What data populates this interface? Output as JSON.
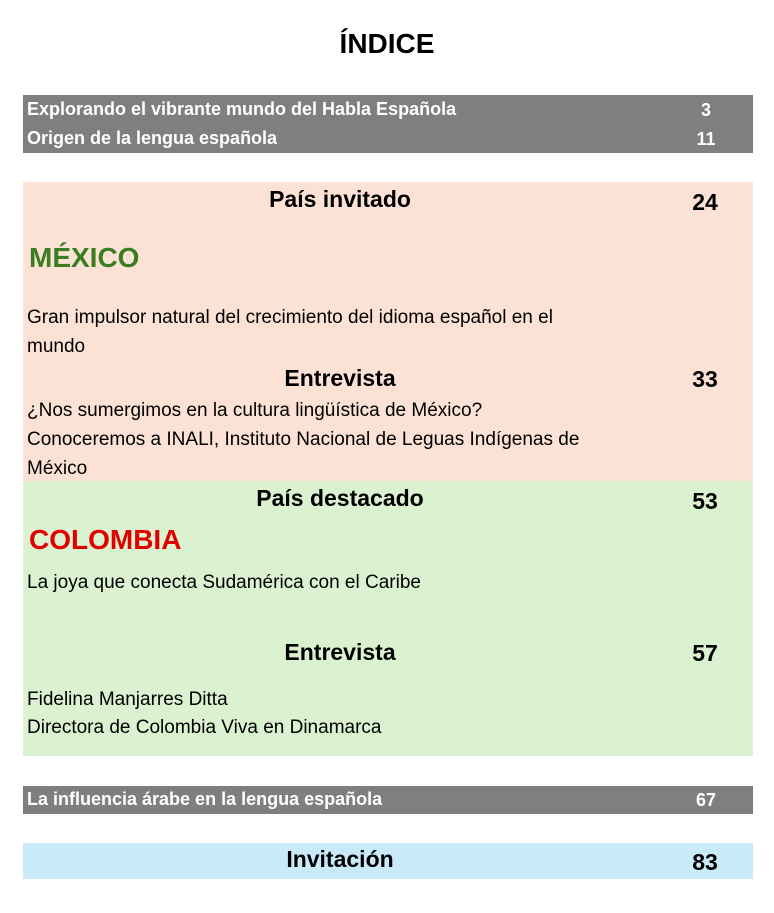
{
  "title": "ÍNDICE",
  "top_entries": [
    {
      "label": "Explorando el vibrante mundo del Habla Española",
      "page": "3"
    },
    {
      "label": "Origen de la lengua española",
      "page": "11"
    }
  ],
  "mexico_section": {
    "heading": "País invitado",
    "page": "24",
    "country": "MÉXICO",
    "description_line1": "Gran impulsor natural del crecimiento del idioma español en el",
    "description_line2": "mundo",
    "interview_heading": "Entrevista",
    "interview_page": "33",
    "interview_line1": "¿Nos sumergimos en la cultura lingüística de México?",
    "interview_line2": "Conoceremos a INALI, Instituto Nacional de Leguas Indígenas de",
    "interview_line3": "México"
  },
  "colombia_section": {
    "heading": "País destacado",
    "page": "53",
    "country": "COLOMBIA",
    "description": "La joya que conecta Sudamérica con el Caribe",
    "interview_heading": "Entrevista",
    "interview_page": "57",
    "interview_line1": "Fidelina Manjarres Ditta",
    "interview_line2": "Directora de Colombia Viva en Dinamarca"
  },
  "arabic_entry": {
    "label": "La influencia árabe en la lengua española",
    "page": "67"
  },
  "invitation": {
    "label": "Invitación",
    "page": "83"
  },
  "colors": {
    "grey_band": "#7f7f7f",
    "pink_band": "#fbe2d5",
    "green_band": "#daf2d0",
    "blue_band": "#c9ebf9",
    "mexico_green": "#3a7d22",
    "colombia_red": "#e00000"
  }
}
